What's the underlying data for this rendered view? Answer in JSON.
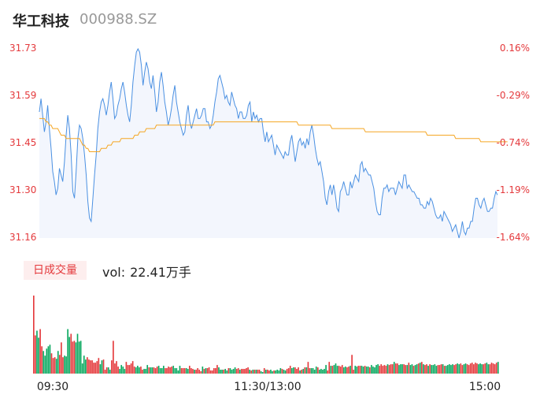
{
  "header": {
    "name": "华工科技",
    "code": "000988.SZ"
  },
  "volume_panel": {
    "period_label": "日成交量",
    "vol_label": "vol:",
    "vol_value": "22.41万手"
  },
  "colors": {
    "price_line": "#4a90e2",
    "avg_line": "#f5a623",
    "up": "#e4393c",
    "down": "#09a85f",
    "neutral": "#666666",
    "fill": "#f3f6fd"
  },
  "chart_data": [
    {
      "type": "line",
      "title": "",
      "x_ticks": [
        "09:30",
        "11:30/13:00",
        "15:00"
      ],
      "y_ticks_left": [
        "31.73",
        "31.59",
        "31.45",
        "31.30",
        "31.16"
      ],
      "y_ticks_right": [
        "0.16%",
        "-0.29%",
        "-0.74%",
        "-1.19%",
        "-1.64%"
      ],
      "ylim": [
        31.16,
        31.73
      ],
      "series": [
        {
          "role": "price",
          "values": [
            31.54,
            31.58,
            31.53,
            31.48,
            31.51,
            31.56,
            31.49,
            31.43,
            31.36,
            31.33,
            31.29,
            31.31,
            31.37,
            31.35,
            31.33,
            31.39,
            31.47,
            31.53,
            31.49,
            31.41,
            31.3,
            31.28,
            31.36,
            31.46,
            31.5,
            31.49,
            31.46,
            31.41,
            31.35,
            31.27,
            31.22,
            31.21,
            31.28,
            31.35,
            31.41,
            31.49,
            31.54,
            31.57,
            31.58,
            31.56,
            31.53,
            31.56,
            31.6,
            31.63,
            31.58,
            31.52,
            31.53,
            31.56,
            31.58,
            31.61,
            31.63,
            31.6,
            31.56,
            31.53,
            31.51,
            31.56,
            31.63,
            31.68,
            31.72,
            31.73,
            31.72,
            31.68,
            31.62,
            31.66,
            31.69,
            31.67,
            31.63,
            31.61,
            31.65,
            31.6,
            31.54,
            31.57,
            31.63,
            31.66,
            31.62,
            31.57,
            31.54,
            31.5,
            31.52,
            31.55,
            31.59,
            31.62,
            31.57,
            31.54,
            31.51,
            31.49,
            31.47,
            31.48,
            31.53,
            31.56,
            31.51,
            31.49,
            31.51,
            31.53,
            31.55,
            31.52,
            31.52,
            31.53,
            31.55,
            31.55,
            31.51,
            31.51,
            31.49,
            31.5,
            31.53,
            31.57,
            31.6,
            31.64,
            31.65,
            31.63,
            31.61,
            31.58,
            31.59,
            31.57,
            31.56,
            31.6,
            31.58,
            31.56,
            31.55,
            31.52,
            31.54,
            31.54,
            31.52,
            31.52,
            31.53,
            31.56,
            31.57,
            31.51,
            31.54,
            31.52,
            31.53,
            31.51,
            31.52,
            31.52,
            31.48,
            31.45,
            31.48,
            31.45,
            31.46,
            31.47,
            31.44,
            31.41,
            31.44,
            31.43,
            31.42,
            31.41,
            31.4,
            31.42,
            31.41,
            31.41,
            31.45,
            31.47,
            31.43,
            31.39,
            31.42,
            31.45,
            31.46,
            31.44,
            31.45,
            31.43,
            31.46,
            31.44,
            31.48,
            31.5,
            31.47,
            31.43,
            31.4,
            31.38,
            31.39,
            31.36,
            31.33,
            31.28,
            31.26,
            31.3,
            31.32,
            31.29,
            31.32,
            31.29,
            31.25,
            31.24,
            31.3,
            31.31,
            31.33,
            31.31,
            31.29,
            31.29,
            31.33,
            31.31,
            31.33,
            31.35,
            31.34,
            31.33,
            31.38,
            31.39,
            31.36,
            31.37,
            31.36,
            31.35,
            31.35,
            31.33,
            31.31,
            31.27,
            31.24,
            31.23,
            31.23,
            31.28,
            31.31,
            31.31,
            31.32,
            31.3,
            31.31,
            31.31,
            31.31,
            31.29,
            31.31,
            31.33,
            31.32,
            31.31,
            31.35,
            31.35,
            31.31,
            31.32,
            31.31,
            31.3,
            31.3,
            31.29,
            31.28,
            31.28,
            31.26,
            31.26,
            31.25,
            31.25,
            31.27,
            31.26,
            31.28,
            31.27,
            31.25,
            31.23,
            31.22,
            31.22,
            31.23,
            31.21,
            31.24,
            31.23,
            31.22,
            31.21,
            31.2,
            31.18,
            31.19,
            31.2,
            31.18,
            31.16,
            31.18,
            31.21,
            31.18,
            31.17,
            31.19,
            31.19,
            31.21,
            31.21,
            31.25,
            31.28,
            31.28,
            31.26,
            31.25,
            31.27,
            31.28,
            31.26,
            31.24,
            31.24,
            31.25,
            31.25,
            31.28,
            31.3,
            31.29
          ]
        },
        {
          "role": "average",
          "values": [
            31.52,
            31.52,
            31.52,
            31.52,
            31.51,
            31.51,
            31.5,
            31.5,
            31.49,
            31.49,
            31.49,
            31.49,
            31.48,
            31.47,
            31.47,
            31.47,
            31.46,
            31.46,
            31.46,
            31.46,
            31.46,
            31.46,
            31.46,
            31.46,
            31.46,
            31.45,
            31.44,
            31.44,
            31.43,
            31.43,
            31.42,
            31.42,
            31.42,
            31.42,
            31.42,
            31.42,
            31.42,
            31.43,
            31.43,
            31.43,
            31.43,
            31.44,
            31.44,
            31.44,
            31.45,
            31.45,
            31.45,
            31.45,
            31.45,
            31.46,
            31.46,
            31.46,
            31.46,
            31.46,
            31.46,
            31.46,
            31.46,
            31.47,
            31.47,
            31.47,
            31.48,
            31.48,
            31.48,
            31.48,
            31.49,
            31.49,
            31.49,
            31.49,
            31.49,
            31.49,
            31.5,
            31.5,
            31.5,
            31.5,
            31.5,
            31.5,
            31.5,
            31.5,
            31.5,
            31.5,
            31.5,
            31.5,
            31.5,
            31.5,
            31.5,
            31.5,
            31.5,
            31.5,
            31.5,
            31.5,
            31.5,
            31.5,
            31.5,
            31.5,
            31.5,
            31.5,
            31.5,
            31.5,
            31.5,
            31.5,
            31.5,
            31.5,
            31.5,
            31.5,
            31.5,
            31.51,
            31.51,
            31.51,
            31.51,
            31.51,
            31.51,
            31.51,
            31.51,
            31.51,
            31.51,
            31.51,
            31.51,
            31.51,
            31.51,
            31.51,
            31.51,
            31.51,
            31.51,
            31.51,
            31.51,
            31.51,
            31.51,
            31.51,
            31.51,
            31.51,
            31.51,
            31.51,
            31.51,
            31.51,
            31.51,
            31.51,
            31.51,
            31.51,
            31.51,
            31.51,
            31.51,
            31.51,
            31.51,
            31.51,
            31.51,
            31.51,
            31.51,
            31.51,
            31.51,
            31.51,
            31.51,
            31.51,
            31.51,
            31.51,
            31.51,
            31.5,
            31.5,
            31.5,
            31.5,
            31.5,
            31.5,
            31.5,
            31.5,
            31.5,
            31.5,
            31.5,
            31.5,
            31.5,
            31.5,
            31.5,
            31.5,
            31.5,
            31.5,
            31.5,
            31.5,
            31.49,
            31.49,
            31.49,
            31.49,
            31.49,
            31.49,
            31.49,
            31.49,
            31.49,
            31.49,
            31.49,
            31.49,
            31.49,
            31.49,
            31.49,
            31.49,
            31.49,
            31.49,
            31.49,
            31.49,
            31.48,
            31.48,
            31.48,
            31.48,
            31.48,
            31.48,
            31.48,
            31.48,
            31.48,
            31.48,
            31.48,
            31.48,
            31.48,
            31.48,
            31.48,
            31.48,
            31.48,
            31.48,
            31.48,
            31.48,
            31.48,
            31.48,
            31.48,
            31.48,
            31.48,
            31.48,
            31.48,
            31.48,
            31.48,
            31.48,
            31.48,
            31.48,
            31.48,
            31.48,
            31.48,
            31.48,
            31.48,
            31.47,
            31.47,
            31.47,
            31.47,
            31.47,
            31.47,
            31.47,
            31.47,
            31.47,
            31.47,
            31.47,
            31.47,
            31.47,
            31.47,
            31.47,
            31.47,
            31.47,
            31.46,
            31.46,
            31.46,
            31.46,
            31.46,
            31.46,
            31.46,
            31.46,
            31.46,
            31.46,
            31.46,
            31.46,
            31.46,
            31.46,
            31.46,
            31.45,
            31.45,
            31.45,
            31.45,
            31.45,
            31.45,
            31.45,
            31.45,
            31.45,
            31.45,
            31.45,
            31.45,
            31.45,
            31.45,
            31.45,
            31.45,
            31.45
          ]
        }
      ]
    },
    {
      "type": "bar",
      "title": "",
      "ylim": [
        0,
        100
      ],
      "values": [
        100,
        49,
        55,
        46,
        57,
        35,
        29,
        23,
        32,
        35,
        37,
        26,
        20,
        21,
        19,
        29,
        24,
        40,
        21,
        23,
        22,
        57,
        47,
        51,
        41,
        42,
        40,
        51,
        41,
        42,
        13,
        23,
        18,
        21,
        18,
        17,
        17,
        14,
        14,
        16,
        20,
        12,
        17,
        18,
        5,
        8,
        8,
        5,
        17,
        42,
        13,
        16,
        9,
        6,
        11,
        9,
        6,
        15,
        11,
        11,
        13,
        16,
        9,
        8,
        10,
        8,
        9,
        5,
        6,
        6,
        11,
        8,
        8,
        8,
        8,
        7,
        9,
        10,
        7,
        7,
        10,
        7,
        7,
        9,
        8,
        9,
        10,
        7,
        7,
        4,
        10,
        7,
        7,
        7,
        7,
        6,
        10,
        7,
        6,
        5,
        5,
        7,
        5,
        3,
        9,
        6,
        7,
        7,
        8,
        4,
        4,
        7,
        7,
        11,
        8,
        5,
        5,
        5,
        6,
        4,
        7,
        7,
        5,
        6,
        8,
        6,
        7,
        5,
        6,
        6,
        6,
        7,
        8,
        5,
        4,
        5,
        5,
        5,
        5,
        5,
        3,
        2,
        7,
        5,
        5,
        4,
        5,
        3,
        4,
        4,
        5,
        4,
        7,
        6,
        5,
        4,
        6,
        7,
        10,
        7,
        8,
        8,
        6,
        8,
        4,
        5,
        6,
        8,
        8,
        15,
        7,
        7,
        7,
        5,
        9,
        8,
        5,
        6,
        5,
        6,
        11,
        4,
        15,
        10,
        10,
        11,
        13,
        10,
        10,
        9,
        11,
        8,
        9,
        8,
        9,
        10,
        24,
        5,
        10,
        9,
        10,
        10,
        10,
        9,
        10,
        9,
        9,
        8,
        11,
        9,
        8,
        11,
        12,
        10,
        12,
        10,
        11,
        10,
        12,
        11,
        12,
        12,
        15,
        13,
        13,
        11,
        12,
        12,
        12,
        11,
        11,
        14,
        11,
        12,
        10,
        11,
        12,
        13,
        14,
        15,
        12,
        11,
        12,
        10,
        12,
        11,
        11,
        12,
        10,
        11,
        11,
        12,
        12,
        10,
        10,
        11,
        12,
        11,
        12,
        11,
        12,
        13,
        12,
        13,
        11,
        12,
        13,
        12,
        11,
        13,
        14,
        12,
        14,
        13,
        12,
        13,
        12,
        12,
        13,
        14,
        12,
        12,
        14,
        13,
        12,
        14,
        15
      ]
    }
  ]
}
